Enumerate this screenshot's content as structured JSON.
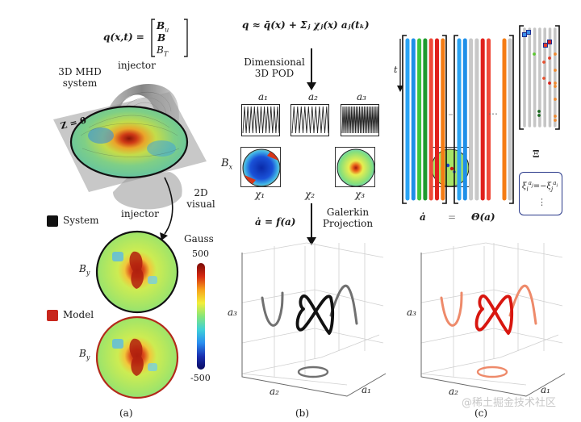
{
  "panel_a": {
    "state_eq": {
      "lhs": "q(x,t) =",
      "vector": [
        "B_u",
        "B",
        "B_T"
      ]
    },
    "labels": {
      "system_3d": [
        "3D MHD",
        "system"
      ],
      "injector_top": "injector",
      "injector_bottom": "injector",
      "plane": "Z = 0",
      "visual_2d": [
        "2D",
        "visual"
      ],
      "by_top": "B_y",
      "by_bottom": "B_y"
    },
    "legend": [
      {
        "label": "System",
        "color": "#111111"
      },
      {
        "label": "Model",
        "color": "#c8261c"
      }
    ],
    "colorbar": {
      "title": "Gauss",
      "max": "500",
      "min": "-500",
      "colors": [
        "#7a0a05",
        "#d62a12",
        "#f7a21b",
        "#f2ee3a",
        "#86e67a",
        "#3fd0d8",
        "#2a8ef0",
        "#1a2fb0",
        "#0a0a60"
      ]
    },
    "caption": "(a)"
  },
  "panel_b": {
    "pod_eq": "q ≈ q̄(x) + Σⱼ χⱼ(x) aⱼ(tₖ)",
    "pod_label": [
      "Dimensional",
      "3D POD"
    ],
    "time_series": [
      {
        "label": "a₁",
        "cycles": 11
      },
      {
        "label": "a₂",
        "cycles": 10
      },
      {
        "label": "a₃",
        "cycles": 22
      }
    ],
    "field_label": "B_x",
    "modes": [
      "χ₁",
      "χ₂",
      "χ₃"
    ],
    "galerkin_eq": "ȧ = f(a)",
    "galerkin_label": [
      "Galerkin",
      "Projection"
    ],
    "axes": {
      "x": "a₂",
      "y": "a₁",
      "z": "a₃"
    },
    "trajectory_color": "#111111",
    "projection_color": "#707070",
    "caption": "(b)"
  },
  "panel_c": {
    "time_axis": "t",
    "lhs_label": "ȧ",
    "equals": "=",
    "rhs_label": "Θ(a)",
    "ellipsis": "⋯",
    "xi_label": "Ξ",
    "constraint": "ξᵢ^{aⱼ} = −ξⱼ^{aᵢ}",
    "constraint_more": "⋮",
    "adot_columns": [
      "#2aa4f4",
      "#1f8fe8",
      "#3cc43c",
      "#1e9a2e",
      "#ef4a3a",
      "#e0201c",
      "#f57c14"
    ],
    "theta_columns": [
      "#2aa4f4",
      "#1f8fe8",
      "#c8c8c8",
      "#c8c8c8",
      "#e0201c",
      "#ef4a3a"
    ],
    "theta_tail_columns": [
      "#f57c14",
      "#c8c8c8"
    ],
    "xi_columns": 7,
    "axes": {
      "x": "a₂",
      "y": "a₁",
      "z": "a₃"
    },
    "trajectory_color": "#d8160f",
    "projection_color": "#ee8a6a",
    "caption": "(c)"
  },
  "watermark": "@稀土掘金技术社区"
}
